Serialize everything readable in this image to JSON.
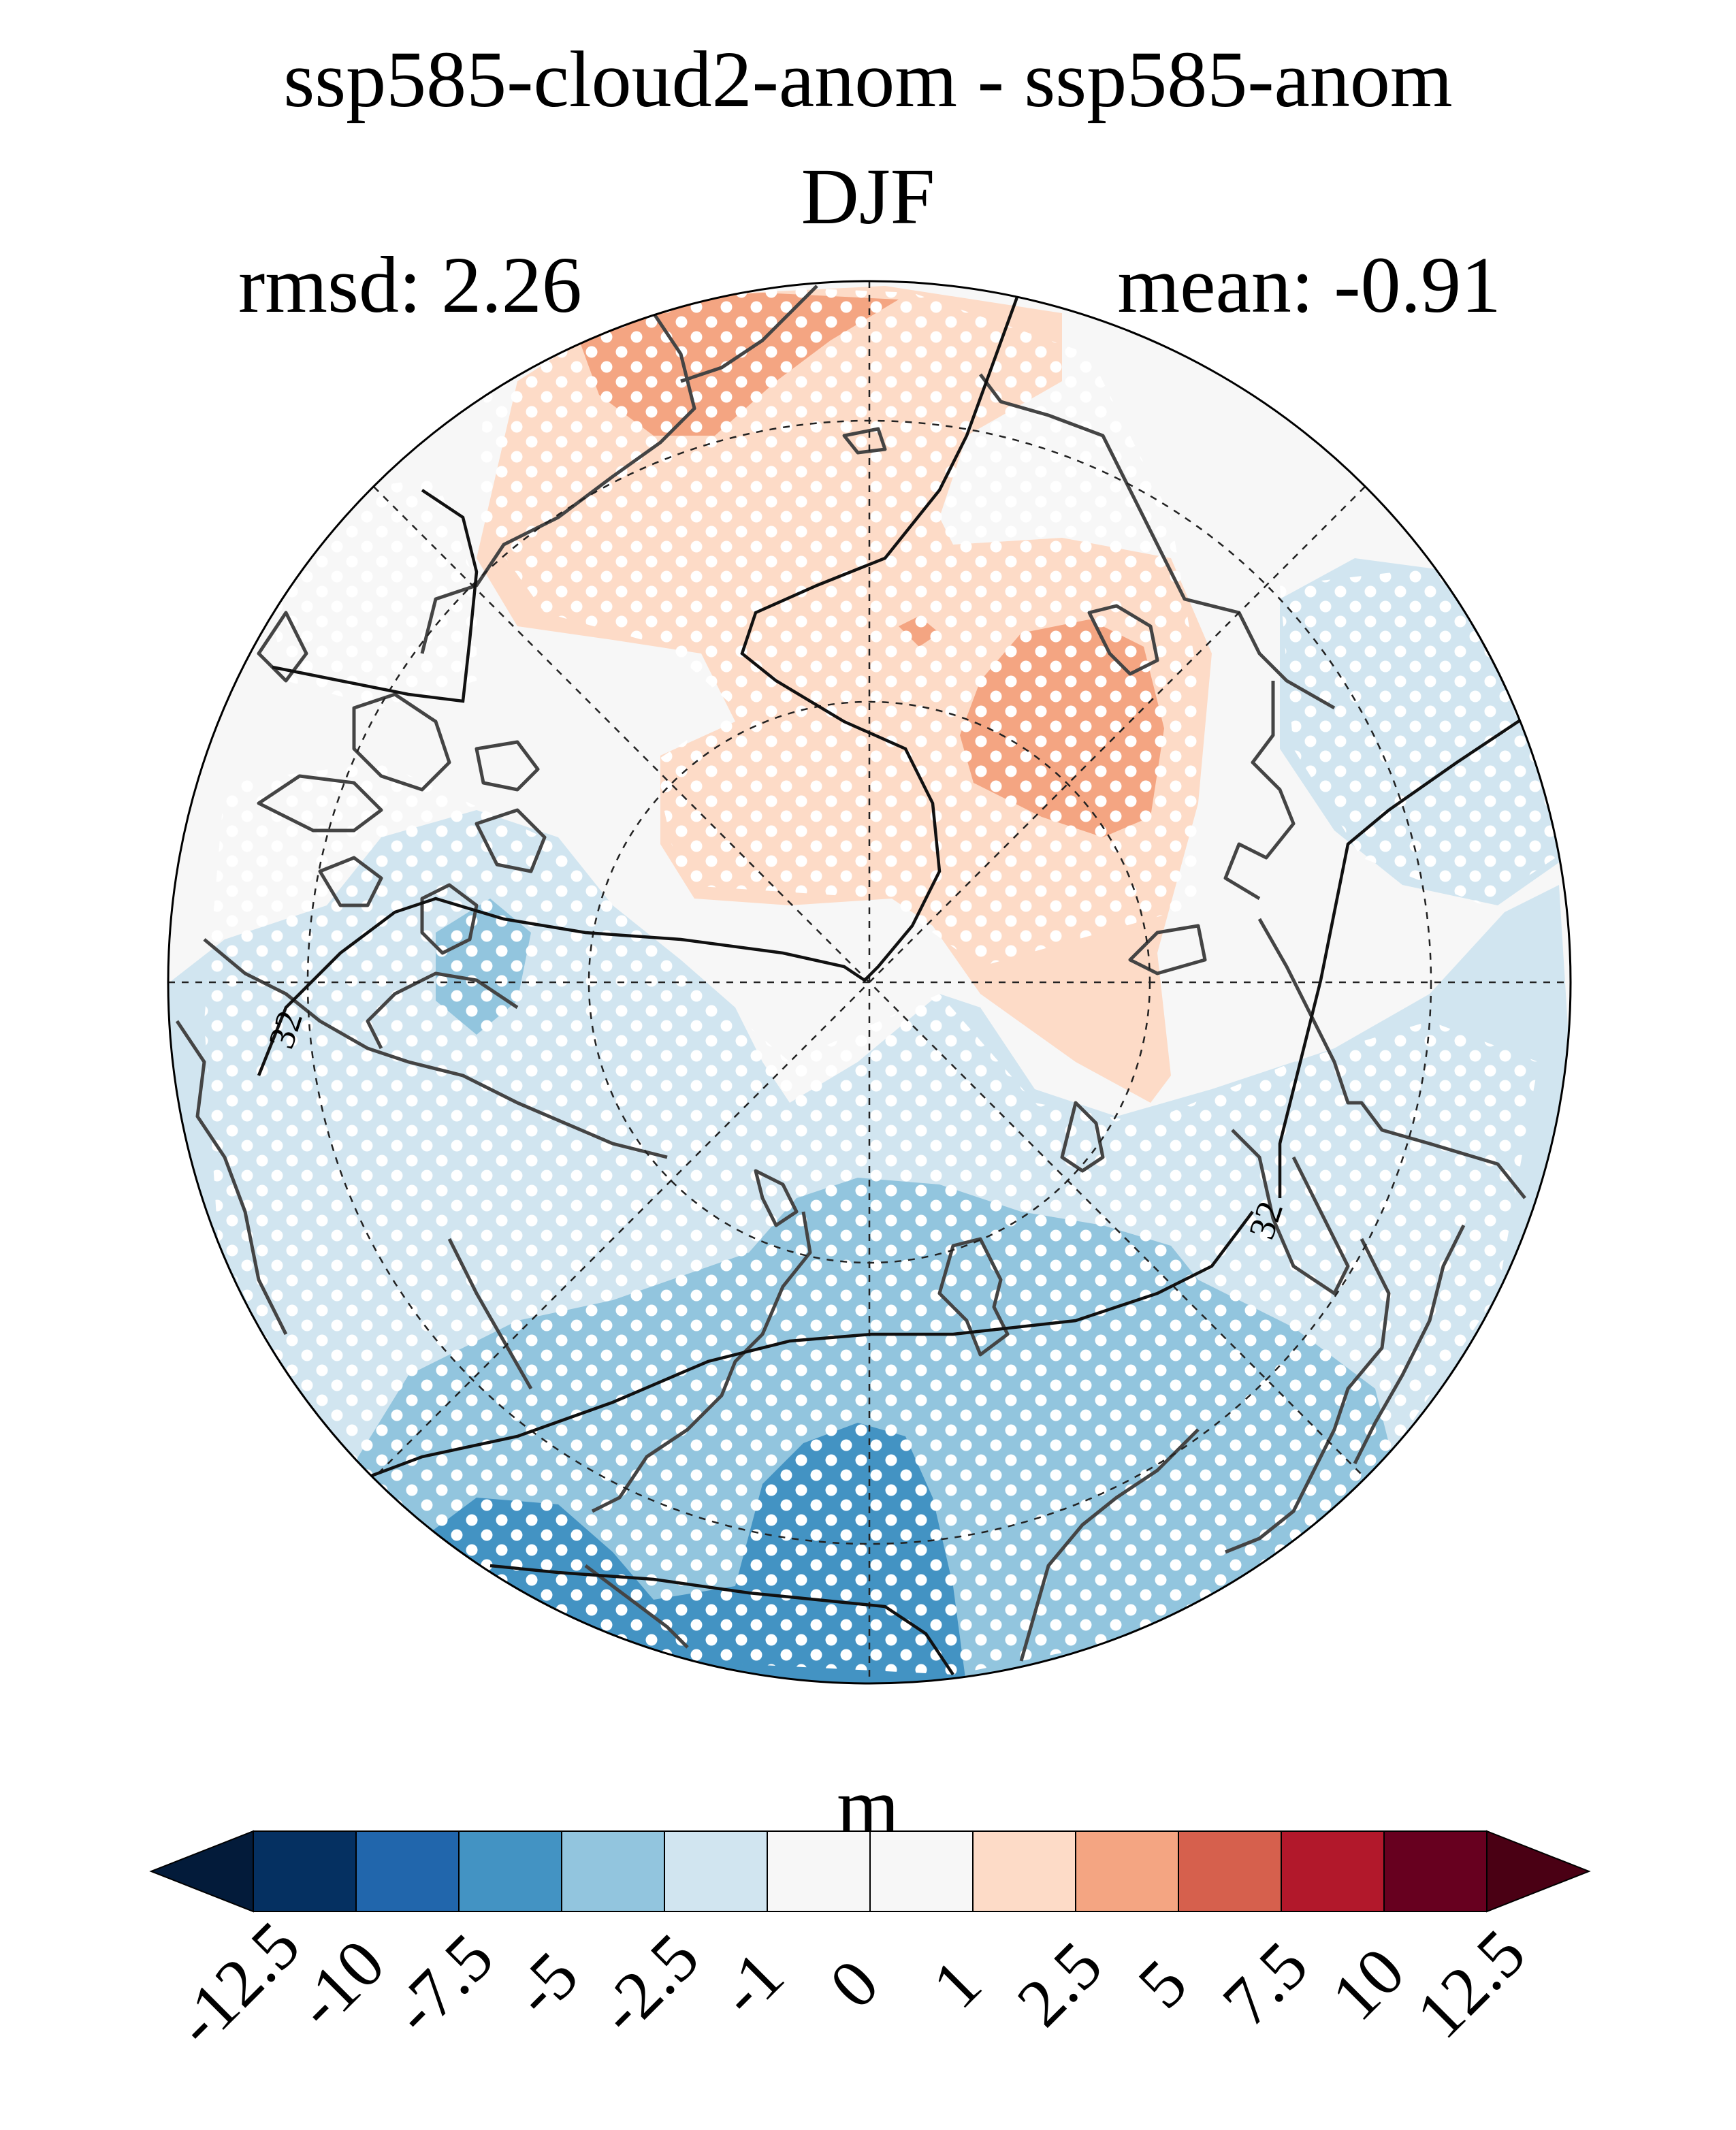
{
  "title": "ssp585-cloud2-anom - ssp585-anom",
  "season": "DJF",
  "stats": {
    "rmsd": "rmsd: 2.26",
    "mean": "mean: -0.91"
  },
  "contour_label": "32",
  "colorbar": {
    "unit": "m",
    "ticks": [
      "-12.5",
      "-10",
      "-7.5",
      "-5",
      "-2.5",
      "-1",
      "0",
      "1",
      "2.5",
      "5",
      "7.5",
      "10",
      "12.5"
    ],
    "colors": [
      "#053061",
      "#2166ac",
      "#4393c3",
      "#92c5de",
      "#d1e5f0",
      "#f7f7f7",
      "#f7f7f7",
      "#fddbc7",
      "#f4a582",
      "#d6604d",
      "#b2182b",
      "#67001f"
    ],
    "under_color": "#031b3a",
    "over_color": "#4a0014"
  }
}
